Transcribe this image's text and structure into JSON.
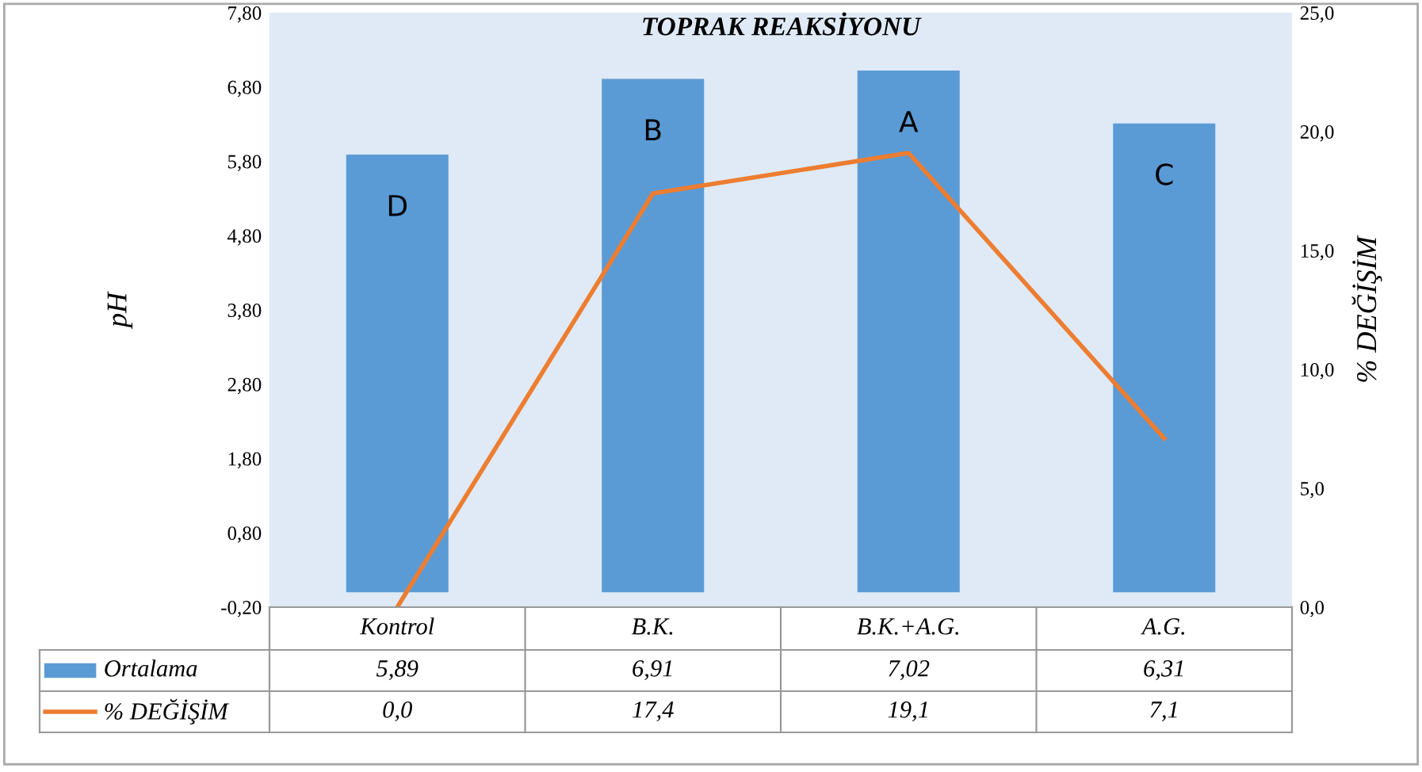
{
  "chart_data": {
    "type": "bar",
    "title": "TOPRAK REAKSİYONU",
    "ylabel": "pH",
    "y2label": "% DEĞİŞİM",
    "categories": [
      "Kontrol",
      "B.K.",
      "B.K.+A.G.",
      "A.G."
    ],
    "series": [
      {
        "name": "Ortalama",
        "color": "#5b9bd5",
        "values": [
          5.89,
          6.91,
          7.02,
          6.31
        ],
        "value_labels": [
          "5,89",
          "6,91",
          "7,02",
          "6,31"
        ]
      },
      {
        "name": "% DEĞİŞİM",
        "type": "line",
        "axis": "y2",
        "color": "#ed7d31",
        "values": [
          0.0,
          17.4,
          19.1,
          7.1
        ],
        "value_labels": [
          "0,0",
          "17,4",
          "19,1",
          "7,1"
        ]
      }
    ],
    "ylim": [
      -0.2,
      7.8
    ],
    "yticks": [
      {
        "value": -0.2,
        "label": "-0,20"
      },
      {
        "value": 0.8,
        "label": "0,80"
      },
      {
        "value": 1.8,
        "label": "1,80"
      },
      {
        "value": 2.8,
        "label": "2,80"
      },
      {
        "value": 3.8,
        "label": "3,80"
      },
      {
        "value": 4.8,
        "label": "4,80"
      },
      {
        "value": 5.8,
        "label": "5,80"
      },
      {
        "value": 6.8,
        "label": "6,80"
      },
      {
        "value": 7.8,
        "label": "7,80"
      }
    ],
    "y2lim": [
      0,
      25
    ],
    "y2ticks": [
      {
        "value": 0,
        "label": "0,0"
      },
      {
        "value": 5,
        "label": "5,0"
      },
      {
        "value": 10,
        "label": "10,0"
      },
      {
        "value": 15,
        "label": "15,0"
      },
      {
        "value": 20,
        "label": "20,0"
      },
      {
        "value": 25,
        "label": "25,0"
      }
    ],
    "annotations": [
      "D",
      "B",
      "A",
      "C"
    ],
    "legend": "bottom",
    "grid": false
  }
}
